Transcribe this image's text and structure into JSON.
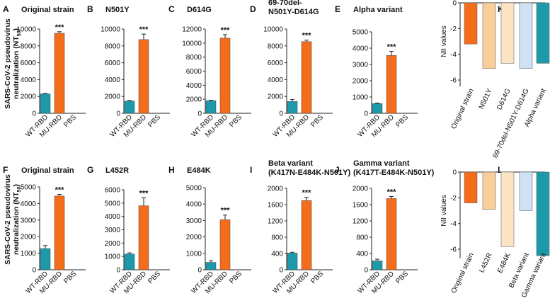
{
  "ylabel_lines": [
    "SARS-CoV-2 pseudovirus",
    "neutralization (NT",
    "50",
    ")"
  ],
  "nii_ylabel": "NII values",
  "colors": {
    "wt": "#1c9aaa",
    "mu": "#f46d1b",
    "light_orange": "#fbcd9b",
    "pale_orange": "#fde4c4",
    "light_blue": "#cfe2f3",
    "teal": "#1c9aaa",
    "axis": "#222222"
  },
  "chart_data": [
    {
      "id": "A",
      "type": "bar",
      "title": "Original strain",
      "categories": [
        "WT-RBD",
        "MU-RBD",
        "PBS"
      ],
      "values": [
        2300,
        9500,
        0
      ],
      "errors": [
        60,
        180,
        0
      ],
      "ylim": [
        0,
        10000
      ],
      "ticks": [
        0,
        2000,
        4000,
        6000,
        8000,
        10000
      ],
      "sig": "***"
    },
    {
      "id": "B",
      "type": "bar",
      "title": "N501Y",
      "categories": [
        "WT-RBD",
        "MU-RBD",
        "PBS"
      ],
      "values": [
        1450,
        8750,
        0
      ],
      "errors": [
        60,
        650,
        0
      ],
      "ylim": [
        0,
        10000
      ],
      "ticks": [
        0,
        2000,
        4000,
        6000,
        8000,
        10000
      ],
      "sig": "***"
    },
    {
      "id": "C",
      "type": "bar",
      "title": "D614G",
      "categories": [
        "WT-RBD",
        "MU-RBD",
        "PBS"
      ],
      "values": [
        1800,
        10700,
        0
      ],
      "errors": [
        60,
        500,
        0
      ],
      "ylim": [
        0,
        12000
      ],
      "ticks": [
        0,
        2000,
        4000,
        6000,
        8000,
        10000,
        12000
      ],
      "sig": "***"
    },
    {
      "id": "D",
      "type": "bar",
      "title_lines": [
        "69-70del-",
        "N501Y-D614G"
      ],
      "categories": [
        "WT-RBD",
        "MU-RBD",
        "PBS"
      ],
      "values": [
        1400,
        8500,
        0
      ],
      "errors": [
        250,
        180,
        0
      ],
      "ylim": [
        0,
        10000
      ],
      "ticks": [
        0,
        2000,
        4000,
        6000,
        8000,
        10000
      ],
      "sig": "***"
    },
    {
      "id": "E",
      "type": "bar",
      "title": "Alpha variant",
      "categories": [
        "WT-RBD",
        "MU-RBD",
        "PBS"
      ],
      "values": [
        600,
        3550,
        0
      ],
      "errors": [
        30,
        250,
        0
      ],
      "ylim": [
        0,
        5000
      ],
      "ticks": [
        0,
        1000,
        2000,
        3000,
        4000,
        5000
      ],
      "sig": "***"
    },
    {
      "id": "F",
      "type": "bar",
      "title": "Original strain",
      "categories": [
        "WT-RBD",
        "MU-RBD",
        "PBS"
      ],
      "values": [
        1280,
        4450,
        0
      ],
      "errors": [
        180,
        100,
        0
      ],
      "ylim": [
        0,
        5000
      ],
      "ticks": [
        0,
        1000,
        2000,
        3000,
        4000,
        5000
      ],
      "sig": "***"
    },
    {
      "id": "G",
      "type": "bar",
      "title": "L452R",
      "categories": [
        "WT-RBD",
        "MU-RBD",
        "PBS"
      ],
      "values": [
        1180,
        4800,
        0
      ],
      "errors": [
        90,
        600,
        0
      ],
      "ylim": [
        0,
        6000
      ],
      "ticks": [
        0,
        1000,
        2000,
        3000,
        4000,
        5000,
        6000
      ],
      "sig": "***"
    },
    {
      "id": "H",
      "type": "bar",
      "title": "E484K",
      "categories": [
        "WT-RBD",
        "MU-RBD",
        "PBS"
      ],
      "values": [
        450,
        3050,
        0
      ],
      "errors": [
        100,
        280,
        0
      ],
      "ylim": [
        0,
        5000
      ],
      "ticks": [
        0,
        1000,
        2000,
        3000,
        4000,
        5000
      ],
      "sig": "***"
    },
    {
      "id": "I",
      "type": "bar",
      "title_lines": [
        "Beta variant",
        "(K417N-E484K-N501Y)"
      ],
      "categories": [
        "WT-RBD",
        "MU-RBD",
        "PBS"
      ],
      "values": [
        410,
        1700,
        0
      ],
      "errors": [
        20,
        80,
        0
      ],
      "ylim": [
        0,
        2000
      ],
      "ticks": [
        0,
        400,
        800,
        1200,
        1600,
        2000
      ],
      "sig": "***"
    },
    {
      "id": "J",
      "type": "bar",
      "title_lines": [
        "Gamma variant",
        "(K417T-E484K-N501Y)"
      ],
      "categories": [
        "WT-RBD",
        "MU-RBD",
        "PBS"
      ],
      "values": [
        220,
        1750,
        0
      ],
      "errors": [
        40,
        50,
        0
      ],
      "ylim": [
        0,
        2000
      ],
      "ticks": [
        0,
        400,
        800,
        1200,
        1600,
        2000
      ],
      "sig": "***"
    },
    {
      "id": "K",
      "type": "bar",
      "title": "",
      "ylabel": "NII values",
      "categories": [
        "Original strain",
        "N501Y",
        "D614G",
        "69-70del-N501Y-D614G",
        "Alpha variant"
      ],
      "values": [
        -3.2,
        -5.1,
        -4.7,
        -5.1,
        -4.7
      ],
      "bar_colors": [
        "#f46d1b",
        "#fbcd9b",
        "#fde4c4",
        "#cfe2f3",
        "#1c9aaa"
      ],
      "ylim": [
        -6.5,
        0
      ],
      "ticks": [
        0,
        -2,
        -4,
        -6
      ]
    },
    {
      "id": "L",
      "type": "bar",
      "title": "",
      "ylabel": "NII values",
      "categories": [
        "Original strain",
        "L452R",
        "E484K",
        "Beta variant",
        "Gamma variant"
      ],
      "values": [
        -2.4,
        -2.9,
        -5.8,
        -3.0,
        -6.5
      ],
      "bar_colors": [
        "#f46d1b",
        "#fbcd9b",
        "#fde4c4",
        "#cfe2f3",
        "#1c9aaa"
      ],
      "ylim": [
        -6.7,
        0
      ],
      "ticks": [
        0,
        -2,
        -4,
        -6
      ]
    }
  ]
}
